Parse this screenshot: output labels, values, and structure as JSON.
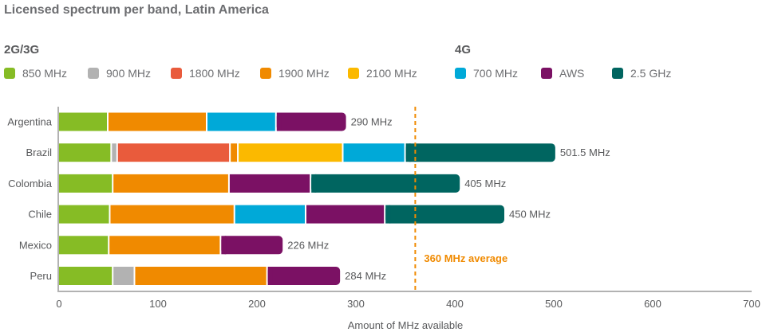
{
  "chart_data": {
    "type": "bar",
    "orientation": "horizontal",
    "stacked": true,
    "title": "Licensed spectrum per band, Latin America",
    "xlabel": "Amount of MHz available",
    "ylabel": "",
    "xlim": [
      0,
      700
    ],
    "xticks": [
      0,
      100,
      200,
      300,
      400,
      500,
      600,
      700
    ],
    "grid": false,
    "legend_position": "top",
    "legend_groups": [
      {
        "title": "2G/3G",
        "series": [
          "850 MHz",
          "900 MHz",
          "1800 MHz",
          "1900 MHz",
          "2100 MHz"
        ]
      },
      {
        "title": "4G",
        "series": [
          "700 MHz",
          "AWS",
          "2.5 GHz"
        ]
      }
    ],
    "categories": [
      "Argentina",
      "Brazil",
      "Colombia",
      "Chile",
      "Mexico",
      "Peru"
    ],
    "series": [
      {
        "name": "850 MHz",
        "color": "#86bc25",
        "values": [
          50,
          53.5,
          55,
          52,
          51,
          55
        ]
      },
      {
        "name": "900 MHz",
        "color": "#b2b2b2",
        "values": [
          0,
          6,
          0,
          0,
          0,
          22
        ]
      },
      {
        "name": "1800 MHz",
        "color": "#e95b3c",
        "values": [
          0,
          114,
          0,
          0,
          0,
          0
        ]
      },
      {
        "name": "1900 MHz",
        "color": "#f08a00",
        "values": [
          100,
          8,
          117.5,
          126,
          113,
          134
        ]
      },
      {
        "name": "2100 MHz",
        "color": "#fbb900",
        "values": [
          0,
          106,
          0,
          0,
          0,
          0
        ]
      },
      {
        "name": "700 MHz",
        "color": "#00a9d8",
        "values": [
          70,
          63,
          0,
          72,
          0,
          0
        ]
      },
      {
        "name": "AWS",
        "color": "#7b1164",
        "values": [
          70,
          0,
          82.5,
          80,
          62,
          73
        ]
      },
      {
        "name": "2.5 GHz",
        "color": "#006560",
        "values": [
          0,
          151,
          150,
          120,
          0,
          0
        ]
      }
    ],
    "totals": [
      290,
      501.5,
      405,
      450,
      226,
      284
    ],
    "total_labels": [
      "290 MHz",
      "501.5 MHz",
      "405 MHz",
      "450 MHz",
      "226 MHz",
      "284 MHz"
    ],
    "reference_line": {
      "value": 360,
      "label": "360 MHz average",
      "color": "#f08a00",
      "style": "dashed"
    }
  }
}
